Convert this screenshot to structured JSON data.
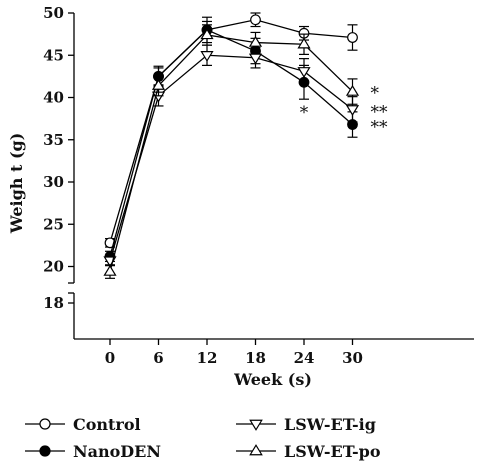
{
  "chart_data": {
    "type": "line",
    "xlabel": "Week (s)",
    "ylabel": "Weigh t (g)",
    "x": [
      0,
      6,
      12,
      18,
      24,
      30
    ],
    "x_ticks": [
      "0",
      "6",
      "12",
      "18",
      "24",
      "30"
    ],
    "y_ticks_upper": [
      "20",
      "25",
      "30",
      "35",
      "40",
      "45",
      "50"
    ],
    "y_tick_lower": "18",
    "ylim": [
      18,
      50
    ],
    "axis_break": true,
    "grid": false,
    "legend_position": "bottom",
    "series": [
      {
        "name": "Control",
        "marker": "circle-open",
        "values": [
          22.8,
          42.5,
          48.0,
          49.2,
          47.6,
          47.1
        ],
        "errors": [
          0.5,
          1.0,
          1.0,
          0.8,
          0.8,
          1.5
        ]
      },
      {
        "name": "NanoDEN",
        "marker": "circle-filled",
        "values": [
          21.2,
          42.5,
          48.0,
          45.5,
          41.8,
          36.8
        ],
        "errors": [
          0.6,
          1.2,
          1.5,
          1.5,
          2.0,
          1.5
        ]
      },
      {
        "name": "LSW-ET-ig",
        "marker": "triangle-down",
        "values": [
          20.7,
          40.2,
          45.0,
          44.7,
          43.1,
          38.6
        ],
        "errors": [
          0.6,
          1.2,
          1.2,
          1.2,
          1.5,
          1.5
        ]
      },
      {
        "name": "LSW-ET-po",
        "marker": "triangle-up",
        "values": [
          19.4,
          41.4,
          47.4,
          46.5,
          46.3,
          40.7
        ],
        "errors": [
          0.8,
          1.2,
          1.2,
          1.2,
          1.2,
          1.5
        ]
      }
    ],
    "annotations": [
      {
        "x": 24,
        "y": 38.5,
        "text": "*"
      },
      {
        "x": 30,
        "y": 40.8,
        "text": "*"
      },
      {
        "x": 30,
        "y": 38.6,
        "text": "**"
      },
      {
        "x": 30,
        "y": 36.8,
        "text": "**"
      }
    ]
  }
}
